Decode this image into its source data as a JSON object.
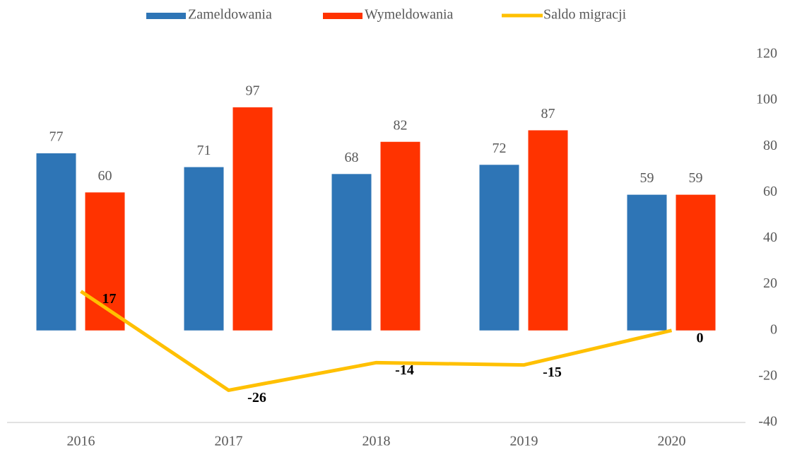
{
  "chart_data": {
    "type": "bar",
    "categories": [
      "2016",
      "2017",
      "2018",
      "2019",
      "2020"
    ],
    "series": [
      {
        "name": "Zameldowania",
        "color": "#2e75b6",
        "values": [
          77,
          71,
          68,
          72,
          59
        ]
      },
      {
        "name": "Wymeldowania",
        "color": "#ff3300",
        "values": [
          60,
          97,
          82,
          87,
          59
        ]
      },
      {
        "name": "Saldo migracji",
        "type": "line",
        "color": "#ffc000",
        "values": [
          17,
          -26,
          -14,
          -15,
          0
        ]
      }
    ],
    "ylim": [
      -40,
      120
    ],
    "yticks": [
      -40,
      -20,
      0,
      20,
      40,
      60,
      80,
      100,
      120
    ],
    "y_axis_side": "right",
    "legend": "top",
    "grid": false
  }
}
